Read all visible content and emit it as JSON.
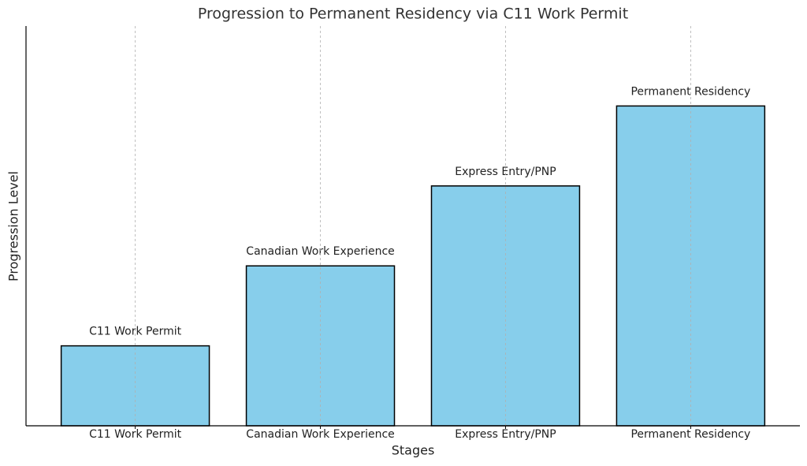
{
  "chart_data": {
    "type": "bar",
    "title": "Progression to Permanent Residency via C11 Work Permit",
    "x_label": "Stages",
    "y_label": "Progression Level",
    "categories": [
      "C11 Work Permit",
      "Canadian Work Experience",
      "Express Entry/PNP",
      "Permanent Residency"
    ],
    "values": [
      1,
      2,
      3,
      4
    ],
    "annotations": [
      "C11 Work Permit",
      "Canadian Work Experience",
      "Express Entry/PNP",
      "Permanent Residency"
    ],
    "color": "#87ceeb",
    "edge_color": "#000000",
    "ylim": [
      0,
      5
    ],
    "yticks": [],
    "grid": "x"
  }
}
